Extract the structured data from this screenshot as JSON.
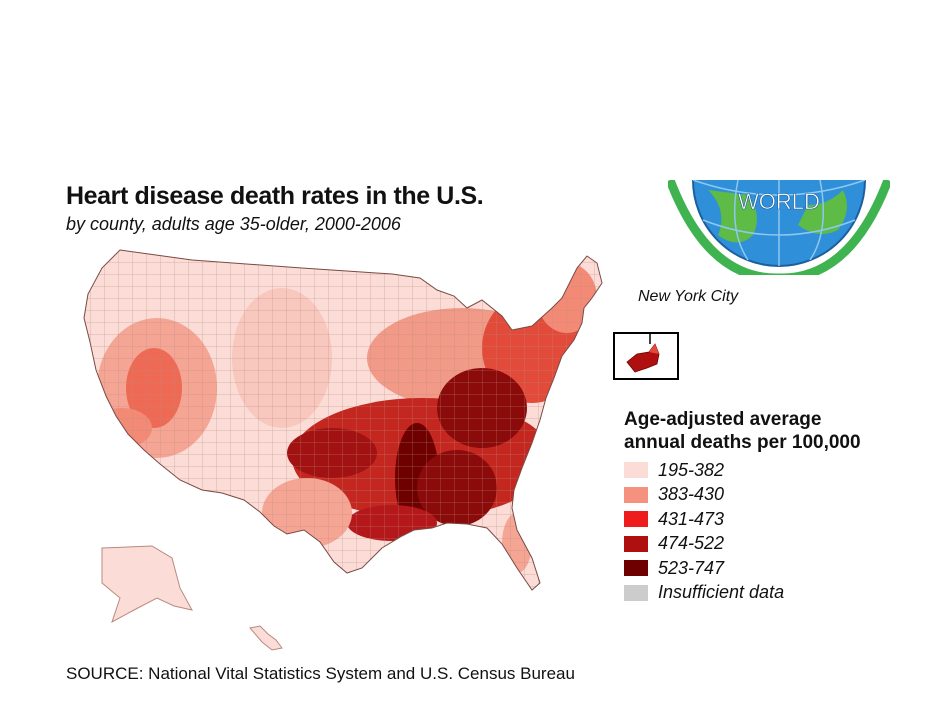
{
  "title": "Heart disease death rates in the U.S.",
  "subtitle": "by county, adults age 35-older, 2000-2006",
  "logo_text": "WORLD",
  "inset_label": "New York City",
  "legend": {
    "title_line1": "Age-adjusted average",
    "title_line2": "annual deaths per 100,000",
    "items": [
      {
        "label": "195-382",
        "color": "#fbdcd6"
      },
      {
        "label": "383-430",
        "color": "#f4917f"
      },
      {
        "label": "431-473",
        "color": "#ee1c1c"
      },
      {
        "label": "474-522",
        "color": "#b00f0f"
      },
      {
        "label": "523-747",
        "color": "#6e0000"
      },
      {
        "label": "Insufficient data",
        "color": "#cccccc"
      }
    ]
  },
  "source": "SOURCE: National Vital Statistics System and U.S. Census Bureau"
}
